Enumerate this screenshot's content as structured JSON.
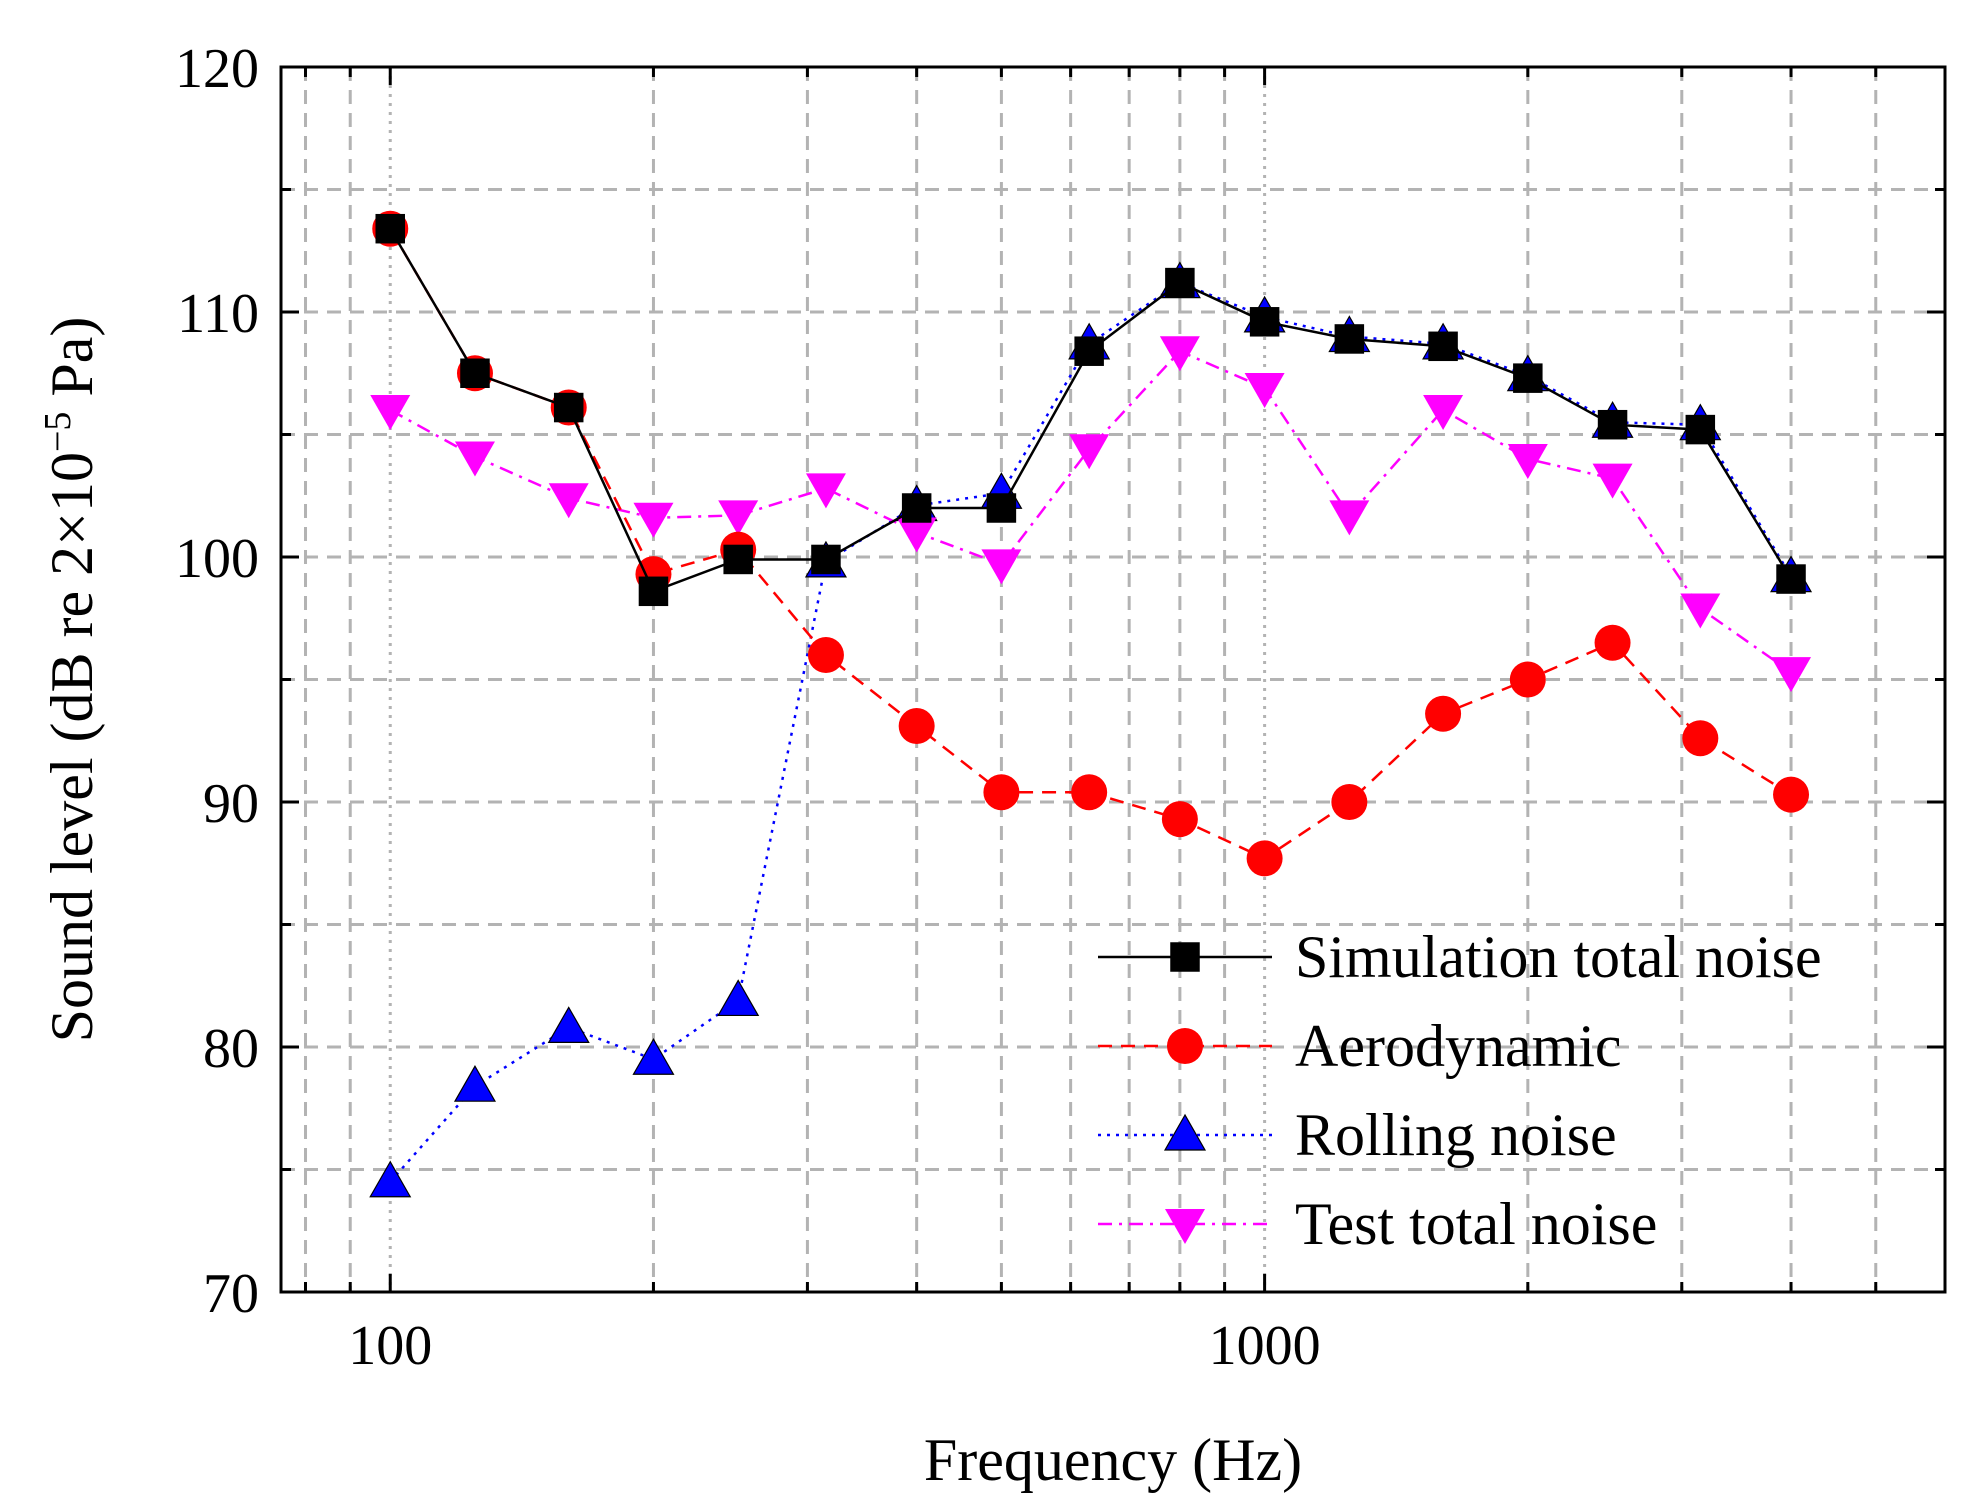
{
  "chart_data": {
    "type": "line",
    "title": "",
    "xlabel": "Frequency (Hz)",
    "ylabel_parts": {
      "main": "Sound level (dB re 2×10",
      "exponent": "−5",
      "unit": " Pa)"
    },
    "xscale": "log",
    "xlim": [
      75,
      6000
    ],
    "ylim": [
      70,
      120
    ],
    "x_tick_labels": [
      {
        "value": 100,
        "label": "100"
      },
      {
        "value": 1000,
        "label": "1000"
      }
    ],
    "y_ticks": [
      70,
      80,
      90,
      100,
      110,
      120
    ],
    "grid": true,
    "legend_position": "bottom-right",
    "x": [
      100,
      125,
      160,
      200,
      250,
      315,
      400,
      500,
      630,
      800,
      1000,
      1250,
      1600,
      2000,
      2500,
      3150,
      4000
    ],
    "series": [
      {
        "name": "Simulation total noise",
        "color": "#000000",
        "marker": "square",
        "line": "solid",
        "values": [
          113.4,
          107.5,
          106.1,
          98.6,
          99.9,
          99.9,
          102.0,
          102.0,
          108.4,
          111.2,
          109.6,
          108.9,
          108.6,
          107.3,
          105.4,
          105.2,
          99.1
        ]
      },
      {
        "name": "Aerodynamic",
        "color": "#ff0000",
        "marker": "circle",
        "line": "dashed",
        "values": [
          113.4,
          107.5,
          106.1,
          99.3,
          100.3,
          96.0,
          93.1,
          90.4,
          90.4,
          89.3,
          87.7,
          90.0,
          93.6,
          95.0,
          96.5,
          92.6,
          90.3
        ]
      },
      {
        "name": "Rolling noise",
        "color": "#0000ff",
        "marker": "triangle-up",
        "line": "dotted",
        "values": [
          74.5,
          78.4,
          80.8,
          79.5,
          81.9,
          99.8,
          102.1,
          102.6,
          108.7,
          111.2,
          109.8,
          109.0,
          108.7,
          107.4,
          105.5,
          105.4,
          99.2
        ]
      },
      {
        "name": "Test total noise",
        "color": "#ff00ff",
        "marker": "triangle-down",
        "line": "dashdot",
        "values": [
          106.0,
          104.1,
          102.4,
          101.6,
          101.7,
          102.8,
          101.0,
          99.7,
          104.4,
          108.4,
          106.9,
          101.7,
          106.0,
          104.0,
          103.2,
          97.9,
          95.3
        ]
      }
    ]
  }
}
